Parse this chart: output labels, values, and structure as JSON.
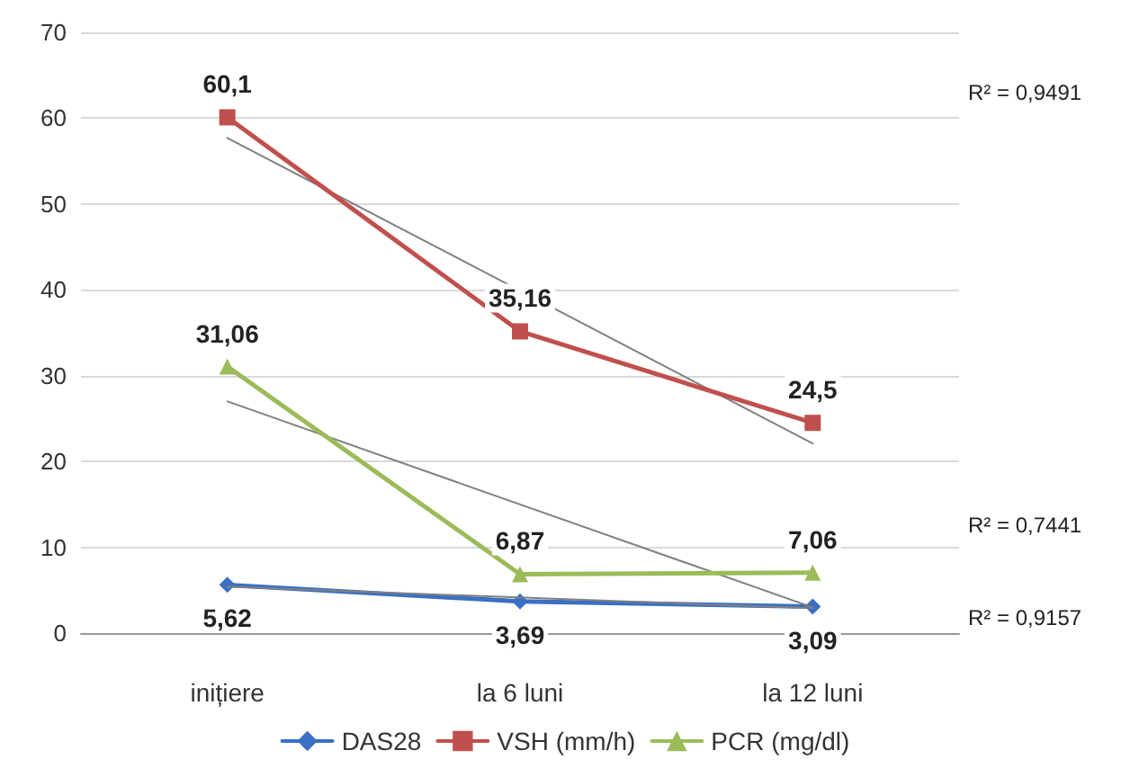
{
  "chart_data": {
    "type": "line",
    "categories": [
      "inițiere",
      "la 6 luni",
      "la 12 luni"
    ],
    "series": [
      {
        "name": "DAS28",
        "color": "#3a6fc4",
        "marker": "diamond",
        "values": [
          5.62,
          3.69,
          3.09
        ],
        "value_labels": [
          "5,62",
          "3,69",
          "3,09"
        ]
      },
      {
        "name": "VSH (mm/h)",
        "color": "#c0504d",
        "marker": "square",
        "values": [
          60.1,
          35.16,
          24.5
        ],
        "value_labels": [
          "60,1",
          "35,16",
          "24,5"
        ]
      },
      {
        "name": "PCR (mg/dl)",
        "color": "#9bbb59",
        "marker": "triangle",
        "values": [
          31.06,
          6.87,
          7.06
        ],
        "value_labels": [
          "31,06",
          "6,87",
          "7,06"
        ]
      },
      {
        "type": "line",
        "color": "#808080",
        "marker": "none",
        "x": [
          "inițiere",
          "la 12 luni"
        ],
        "values": [
          57.7,
          22.1
        ]
      },
      {
        "type": "line",
        "color": "#808080",
        "marker": "none",
        "x": [
          "inițiere",
          "la 12 luni"
        ],
        "values": [
          27.0,
          3.0
        ]
      },
      {
        "type": "line",
        "color": "#808080",
        "marker": "none",
        "x": [
          "inițiere",
          "la 12 luni"
        ],
        "values": [
          5.4,
          2.9
        ]
      }
    ],
    "ylim": [
      0,
      70
    ],
    "yticks": [
      0,
      10,
      20,
      30,
      40,
      50,
      60,
      70
    ],
    "grid": "y",
    "legend": "bottom",
    "annotations": [
      "R² = 0,9491",
      "R² = 0,7441",
      "R² = 0,9157"
    ]
  }
}
